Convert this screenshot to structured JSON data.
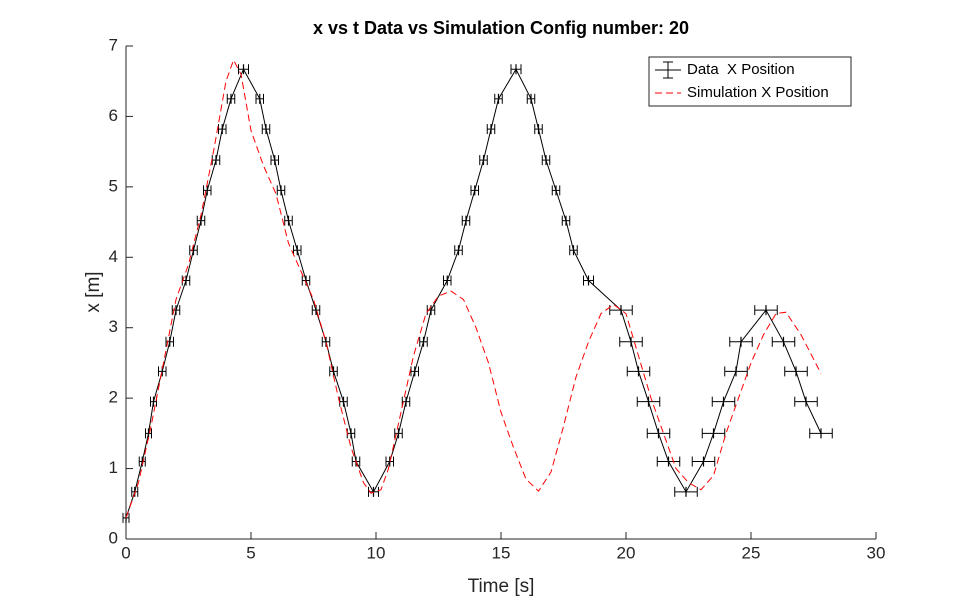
{
  "chart_data": {
    "type": "line",
    "title": "x vs t Data vs Simulation Config number: 20",
    "x_label": "Time [s]",
    "y_label": "x [m]",
    "xlim": [
      0,
      30
    ],
    "ylim": [
      0,
      7
    ],
    "xticks": [
      0,
      5,
      10,
      15,
      20,
      25,
      30
    ],
    "yticks": [
      0,
      1,
      2,
      3,
      4,
      5,
      6,
      7
    ],
    "grid": false,
    "legend": "northeast",
    "series": [
      {
        "name": "Data  X Position",
        "color": "#000000",
        "style": "errorbar",
        "x": [
          0,
          0.35,
          0.65,
          0.9,
          1.1,
          1.45,
          1.75,
          2.0,
          2.4,
          2.7,
          3.0,
          3.25,
          3.6,
          3.85,
          4.2,
          4.7,
          5.35,
          5.6,
          5.95,
          6.2,
          6.5,
          6.85,
          7.2,
          7.6,
          8.0,
          8.3,
          8.7,
          9.0,
          9.2,
          9.9,
          10.55,
          10.9,
          11.2,
          11.55,
          11.9,
          12.2,
          12.85,
          13.3,
          13.6,
          13.95,
          14.3,
          14.6,
          14.9,
          15.6,
          16.2,
          16.5,
          16.8,
          17.2,
          17.6,
          17.9,
          18.5,
          19.8,
          20.2,
          20.5,
          20.9,
          21.3,
          21.7,
          22.4,
          23.1,
          23.5,
          23.9,
          24.4,
          24.6,
          25.6,
          26.3,
          26.8,
          27.2,
          27.8
        ],
        "values": [
          0.3,
          0.67,
          1.1,
          1.5,
          1.95,
          2.38,
          2.8,
          3.25,
          3.67,
          4.1,
          4.52,
          4.95,
          5.38,
          5.82,
          6.25,
          6.67,
          6.25,
          5.82,
          5.38,
          4.95,
          4.52,
          4.1,
          3.67,
          3.25,
          2.8,
          2.38,
          1.95,
          1.5,
          1.1,
          0.67,
          1.1,
          1.5,
          1.95,
          2.38,
          2.8,
          3.25,
          3.67,
          4.1,
          4.52,
          4.95,
          5.38,
          5.82,
          6.25,
          6.67,
          6.25,
          5.82,
          5.38,
          4.95,
          4.52,
          4.1,
          3.67,
          3.25,
          2.8,
          2.38,
          1.95,
          1.5,
          1.1,
          0.67,
          1.1,
          1.5,
          1.95,
          2.38,
          2.8,
          3.25,
          2.8,
          2.38,
          1.95,
          1.5
        ],
        "xerr": [
          0.12,
          0.12,
          0.12,
          0.12,
          0.12,
          0.15,
          0.15,
          0.15,
          0.15,
          0.15,
          0.15,
          0.15,
          0.15,
          0.15,
          0.15,
          0.2,
          0.15,
          0.15,
          0.15,
          0.15,
          0.15,
          0.15,
          0.15,
          0.15,
          0.15,
          0.15,
          0.15,
          0.15,
          0.15,
          0.2,
          0.15,
          0.15,
          0.15,
          0.15,
          0.15,
          0.15,
          0.15,
          0.15,
          0.15,
          0.15,
          0.15,
          0.15,
          0.15,
          0.2,
          0.15,
          0.15,
          0.15,
          0.15,
          0.15,
          0.15,
          0.2,
          0.45,
          0.45,
          0.45,
          0.45,
          0.45,
          0.45,
          0.45,
          0.45,
          0.45,
          0.45,
          0.45,
          0.45,
          0.45,
          0.45,
          0.45,
          0.45,
          0.45
        ]
      },
      {
        "name": "Simulation X Position",
        "color": "#ff0000",
        "style": "dashed",
        "x": [
          0,
          0.5,
          1,
          1.5,
          2,
          2.5,
          3,
          3.5,
          4,
          4.3,
          4.6,
          5,
          5.5,
          6,
          6.5,
          7,
          7.5,
          8,
          8.5,
          9,
          9.5,
          9.8,
          10.2,
          10.5,
          11,
          11.5,
          12,
          12.5,
          13,
          13.5,
          14,
          14.5,
          15,
          15.5,
          16,
          16.5,
          17,
          17.5,
          18,
          18.5,
          19,
          19.5,
          20,
          20.5,
          21,
          21.5,
          22,
          22.5,
          23,
          23.5,
          24,
          24.5,
          25,
          25.5,
          26,
          26.4,
          27,
          27.8
        ],
        "values": [
          0.3,
          0.8,
          1.6,
          2.5,
          3.4,
          3.9,
          4.6,
          5.5,
          6.5,
          6.8,
          6.6,
          5.8,
          5.3,
          4.9,
          4.2,
          3.8,
          3.4,
          2.8,
          2.0,
          1.3,
          0.8,
          0.65,
          0.7,
          1.0,
          1.8,
          2.6,
          3.2,
          3.45,
          3.52,
          3.4,
          3.0,
          2.5,
          1.8,
          1.3,
          0.85,
          0.68,
          0.95,
          1.6,
          2.3,
          2.8,
          3.2,
          3.33,
          3.2,
          2.6,
          2.0,
          1.5,
          1.0,
          0.8,
          0.7,
          0.9,
          1.5,
          2.0,
          2.5,
          2.9,
          3.2,
          3.22,
          2.9,
          2.35
        ]
      }
    ]
  }
}
